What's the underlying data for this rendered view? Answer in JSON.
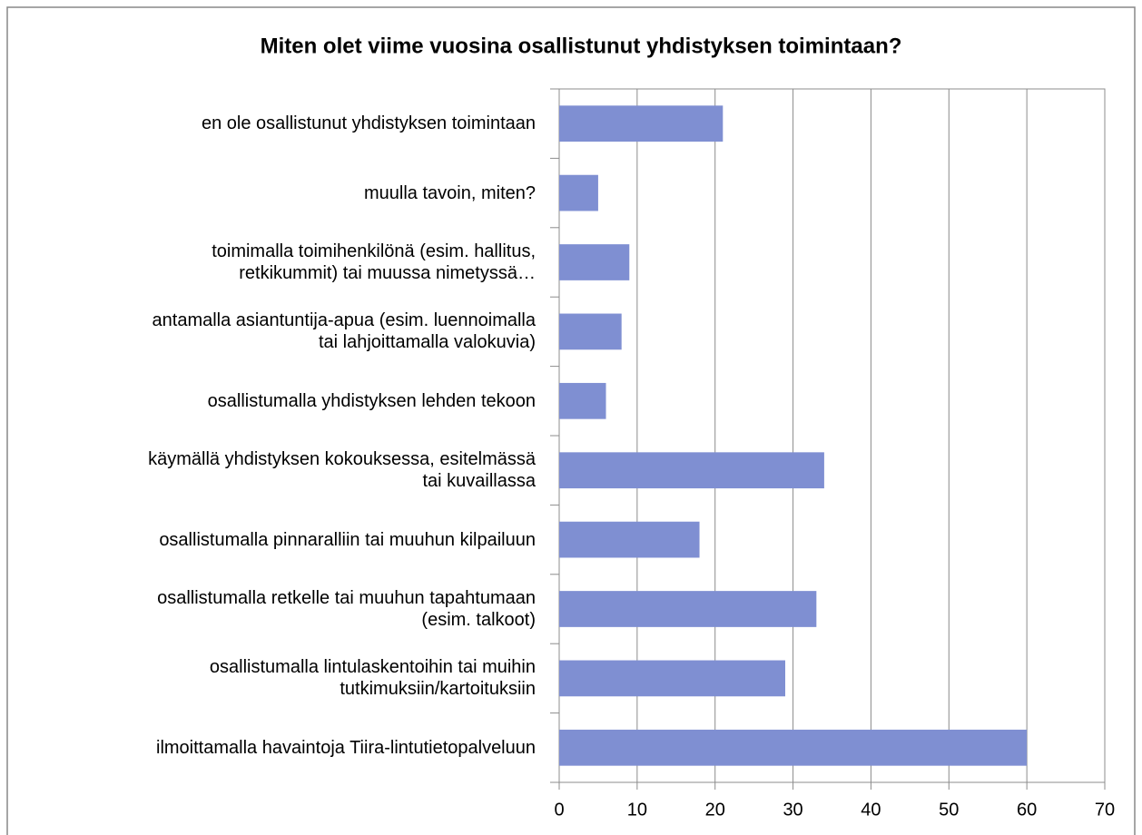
{
  "chart_data": {
    "type": "hbar",
    "title": "Miten olet viime vuosina osallistunut yhdistyksen toimintaan?",
    "categories": [
      "en ole osallistunut yhdistyksen toimintaan",
      "muulla tavoin, miten?",
      "toimimalla toimihenkilönä (esim. hallitus,\nretkikummit) tai muussa nimetyssä…",
      "antamalla asiantuntija-apua (esim. luennoimalla\ntai lahjoittamalla valokuvia)",
      "osallistumalla yhdistyksen lehden tekoon",
      "käymällä yhdistyksen kokouksessa, esitelmässä\ntai kuvaillassa",
      "osallistumalla pinnaralliin tai muuhun kilpailuun",
      "osallistumalla retkelle tai muuhun tapahtumaan\n(esim. talkoot)",
      "osallistumalla lintulaskentoihin tai muihin\ntutkimuksiin/kartoituksiin",
      "ilmoittamalla havaintoja Tiira-lintutietopalveluun"
    ],
    "values": [
      21,
      5,
      9,
      8,
      6,
      34,
      18,
      33,
      29,
      60
    ],
    "color": "#7f8fd2",
    "xlim": [
      0,
      70
    ],
    "xticks": [
      0,
      10,
      20,
      30,
      40,
      50,
      60,
      70
    ],
    "grid": true
  }
}
